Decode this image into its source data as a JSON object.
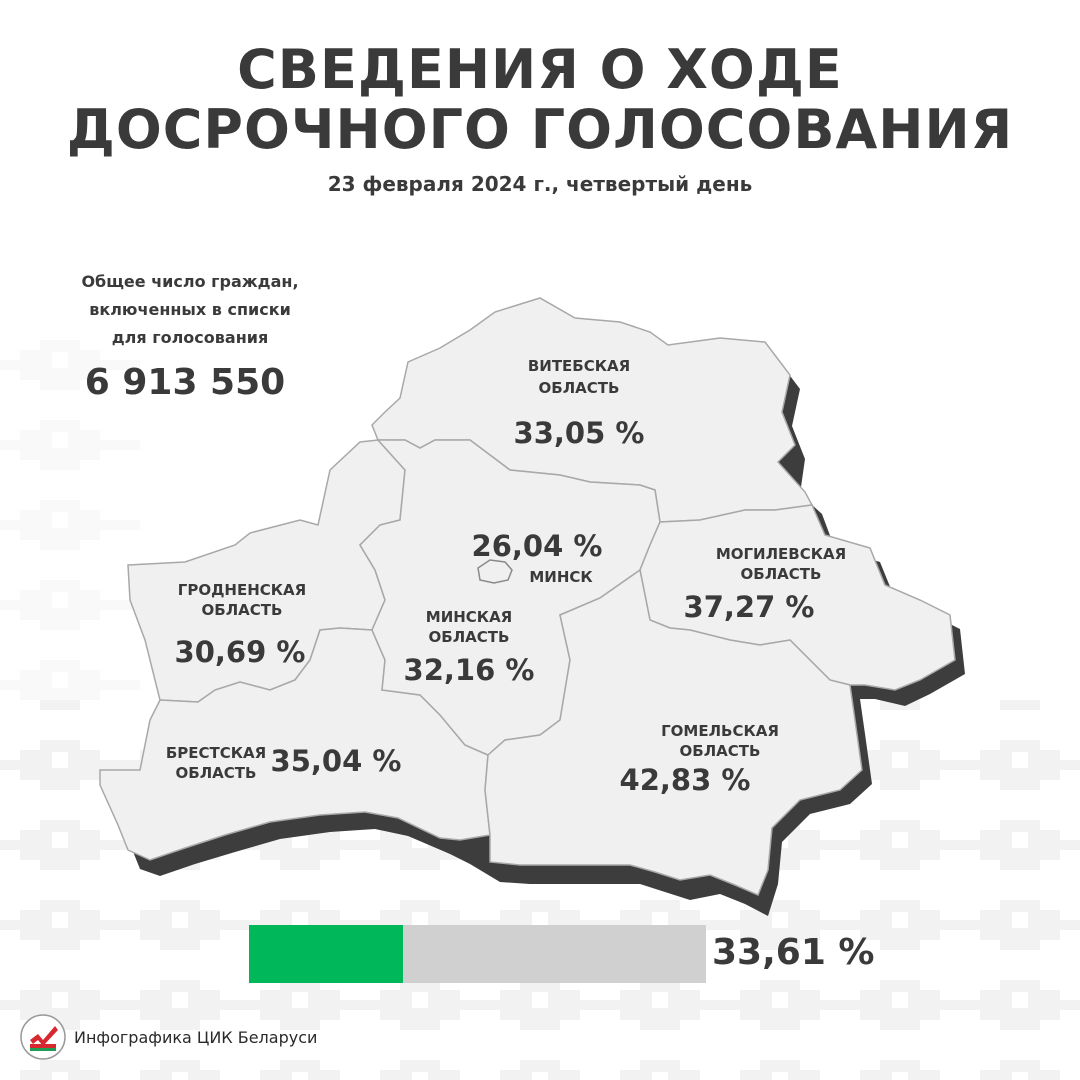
{
  "header": {
    "title_line1": "СВЕДЕНИЯ О ХОДЕ",
    "title_line2": "ДОСРОЧНОГО ГОЛОСОВАНИЯ",
    "subtitle": "23 февраля 2024 г., четвертый день"
  },
  "total": {
    "label_line1": "Общее число граждан,",
    "label_line2": "включенных в списки",
    "label_line3": "для голосования",
    "value": "6 913 550"
  },
  "regions": {
    "vitebsk": {
      "name_line1": "ВИТЕБСКАЯ",
      "name_line2": "ОБЛАСТЬ",
      "percent": "33,05 %"
    },
    "minsk_city": {
      "name": "МИНСК",
      "percent": "26,04 %"
    },
    "mogilev": {
      "name_line1": "МОГИЛЕВСКАЯ",
      "name_line2": "ОБЛАСТЬ",
      "percent": "37,27 %"
    },
    "grodno": {
      "name_line1": "ГРОДНЕНСКАЯ",
      "name_line2": "ОБЛАСТЬ",
      "percent": "30,69 %"
    },
    "minsk_region": {
      "name_line1": "МИНСКАЯ",
      "name_line2": "ОБЛАСТЬ",
      "percent": "32,16 %"
    },
    "brest": {
      "name_line1": "БРЕСТСКАЯ",
      "name_line2": "ОБЛАСТЬ",
      "percent": "35,04 %"
    },
    "gomel": {
      "name_line1": "ГОМЕЛЬСКАЯ",
      "name_line2": "ОБЛАСТЬ",
      "percent": "42,83 %"
    }
  },
  "overall": {
    "percent_text": "33,61 %",
    "fraction": 0.3361
  },
  "colors": {
    "text": "#3a3a3a",
    "map_fill": "#f0f0f0",
    "map_border": "#a8a8a8",
    "map_shadow": "#3d3d3d",
    "progress_fill": "#00b75a",
    "progress_track": "#d0d0d0",
    "logo_red": "#d7282f",
    "logo_green": "#1f9d55"
  },
  "footer": {
    "text": "Инфографика ЦИК Беларуси",
    "logo": "cec-belarus-logo-icon"
  }
}
